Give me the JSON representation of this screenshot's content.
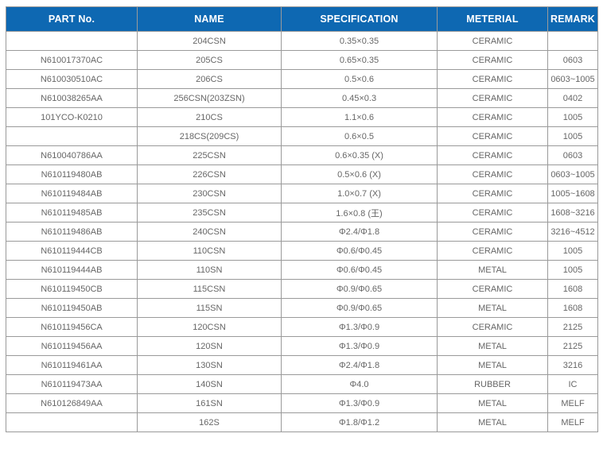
{
  "colors": {
    "header_bg": "#0e68b2",
    "header_text": "#ffffff",
    "border": "#9a9a9a",
    "body_text": "#666666"
  },
  "table": {
    "columns": [
      {
        "key": "part_no",
        "label": "PART No."
      },
      {
        "key": "name",
        "label": "NAME"
      },
      {
        "key": "specification",
        "label": "SPECIFICATION"
      },
      {
        "key": "meterial",
        "label": "METERIAL"
      },
      {
        "key": "remark",
        "label": "REMARK"
      }
    ],
    "rows": [
      [
        "",
        "204CSN",
        "0.35×0.35",
        "CERAMIC",
        ""
      ],
      [
        "N610017370AC",
        "205CS",
        "0.65×0.35",
        "CERAMIC",
        "0603"
      ],
      [
        "N610030510AC",
        "206CS",
        "0.5×0.6",
        "CERAMIC",
        "0603~1005"
      ],
      [
        "N610038265AA",
        "256CSN(203ZSN)",
        "0.45×0.3",
        "CERAMIC",
        "0402"
      ],
      [
        "101YCO-K0210",
        "210CS",
        "1.1×0.6",
        "CERAMIC",
        "1005"
      ],
      [
        "",
        "218CS(209CS)",
        "0.6×0.5",
        "CERAMIC",
        "1005"
      ],
      [
        "N610040786AA",
        "225CSN",
        "0.6×0.35 (X)",
        "CERAMIC",
        "0603"
      ],
      [
        "N610119480AB",
        "226CSN",
        "0.5×0.6 (X)",
        "CERAMIC",
        "0603~1005"
      ],
      [
        "N610119484AB",
        "230CSN",
        "1.0×0.7 (X)",
        "CERAMIC",
        "1005~1608"
      ],
      [
        "N610119485AB",
        "235CSN",
        "1.6×0.8 (王)",
        "CERAMIC",
        "1608~3216"
      ],
      [
        "N610119486AB",
        "240CSN",
        "Φ2.4/Φ1.8",
        "CERAMIC",
        "3216~4512"
      ],
      [
        "N610119444CB",
        "110CSN",
        "Φ0.6/Φ0.45",
        "CERAMIC",
        "1005"
      ],
      [
        "N610119444AB",
        "110SN",
        "Φ0.6/Φ0.45",
        "METAL",
        "1005"
      ],
      [
        "N610119450CB",
        "115CSN",
        "Φ0.9/Φ0.65",
        "CERAMIC",
        "1608"
      ],
      [
        "N610119450AB",
        "115SN",
        "Φ0.9/Φ0.65",
        "METAL",
        "1608"
      ],
      [
        "N610119456CA",
        "120CSN",
        "Φ1.3/Φ0.9",
        "CERAMIC",
        "2125"
      ],
      [
        "N610119456AA",
        "120SN",
        "Φ1.3/Φ0.9",
        "METAL",
        "2125"
      ],
      [
        "N610119461AA",
        "130SN",
        "Φ2.4/Φ1.8",
        "METAL",
        "3216"
      ],
      [
        "N610119473AA",
        "140SN",
        "Φ4.0",
        "RUBBER",
        "IC"
      ],
      [
        "N610126849AA",
        "161SN",
        "Φ1.3/Φ0.9",
        "METAL",
        "MELF"
      ],
      [
        "",
        "162S",
        "Φ1.8/Φ1.2",
        "METAL",
        "MELF"
      ]
    ]
  }
}
